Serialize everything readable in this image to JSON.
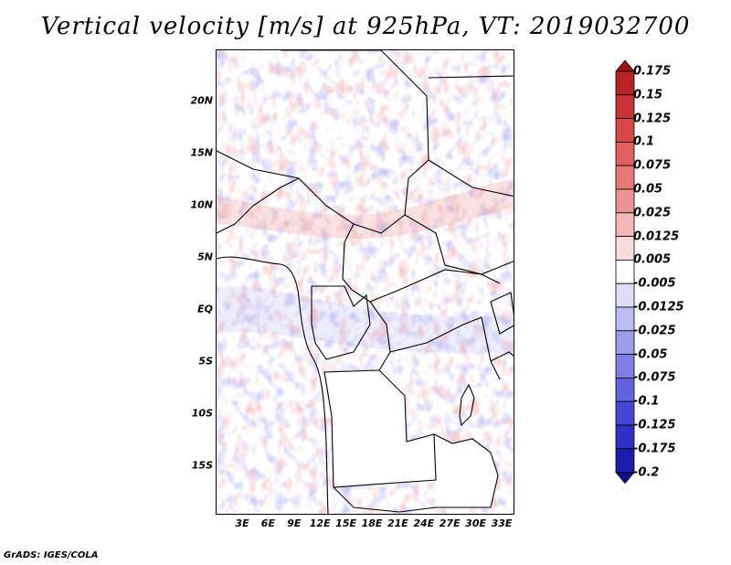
{
  "title": "Vertical velocity [m/s] at 925hPa, VT: 2019032700",
  "credit": "GrADS: IGES/COLA",
  "lat_labels": [
    "20N",
    "15N",
    "10N",
    "5N",
    "EQ",
    "5S",
    "10S",
    "15S"
  ],
  "lon_labels": [
    "3E",
    "6E",
    "9E",
    "12E",
    "15E",
    "18E",
    "21E",
    "24E",
    "27E",
    "30E",
    "33E"
  ],
  "colorbar": {
    "labels": [
      "0.175",
      "0.15",
      "0.125",
      "0.1",
      "0.075",
      "0.05",
      "0.025",
      "0.0125",
      "0.005",
      "-0.005",
      "-0.0125",
      "-0.025",
      "-0.05",
      "-0.075",
      "-0.1",
      "-0.125",
      "-0.175",
      "-0.2"
    ],
    "colors": [
      "#a01414",
      "#b92323",
      "#c93434",
      "#d84848",
      "#e15f5f",
      "#e77979",
      "#ec9494",
      "#f3b8b8",
      "#f8dcdc",
      "#ffffff",
      "#dcdcf8",
      "#bcbcf3",
      "#9c9cec",
      "#7e7ee6",
      "#6262df",
      "#4646d6",
      "#3030c4",
      "#1c1cad",
      "#0d0d92"
    ]
  }
}
